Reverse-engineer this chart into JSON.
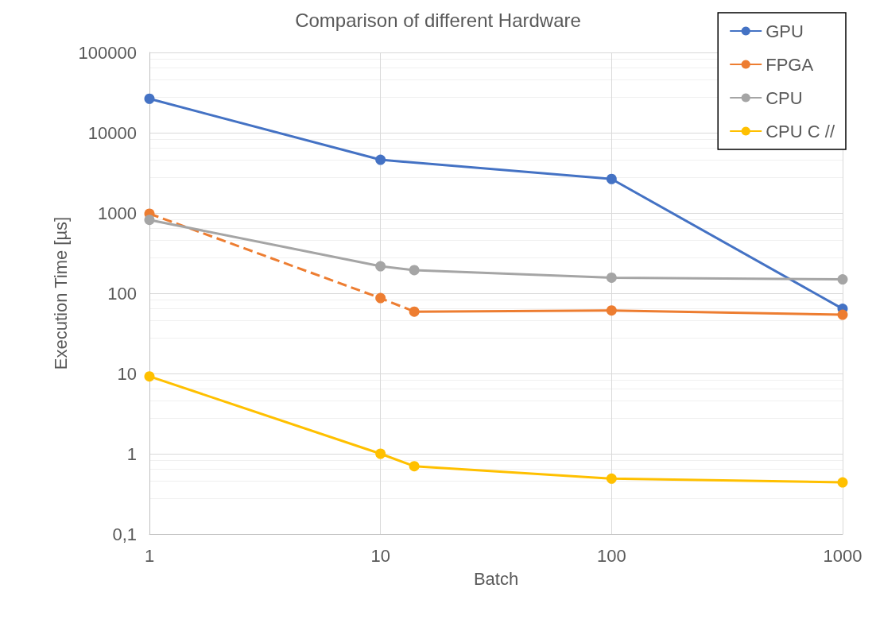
{
  "chart_data": {
    "type": "line",
    "title": "Comparison of different Hardware",
    "xlabel": "Batch",
    "ylabel": "Execution Time [µs]",
    "log": "xy",
    "xlim": [
      1,
      1000
    ],
    "xticks": [
      1,
      10,
      100,
      1000
    ],
    "ylim": [
      0.1,
      100000
    ],
    "yticks": [
      {
        "value": 0.1,
        "label": "0,1"
      },
      1,
      10,
      100,
      1000,
      10000,
      100000
    ],
    "grid": true,
    "legend": "top right",
    "marker": "circle",
    "series": [
      {
        "name": "GPU",
        "color": "#4472c4",
        "x": [
          1,
          10,
          100,
          1000
        ],
        "values": [
          26500,
          4600,
          2650,
          64
        ]
      },
      {
        "name": "FPGA",
        "color": "#ed7d31",
        "x": [
          14,
          100,
          1000
        ],
        "values": [
          59,
          61,
          54
        ]
      },
      {
        "color": "#ed7d31",
        "line_style": "dashed",
        "x": [
          1,
          10,
          14
        ],
        "values": [
          980,
          87,
          59
        ]
      },
      {
        "name": "CPU",
        "color": "#a5a5a5",
        "x": [
          1,
          10,
          14,
          100,
          1000
        ],
        "values": [
          820,
          217,
          194,
          156,
          149
        ]
      },
      {
        "name": "CPU C //",
        "color": "#ffc000",
        "x": [
          1,
          10,
          14,
          100,
          1000
        ],
        "values": [
          9.2,
          1,
          0.7,
          0.49,
          0.44
        ]
      }
    ]
  }
}
